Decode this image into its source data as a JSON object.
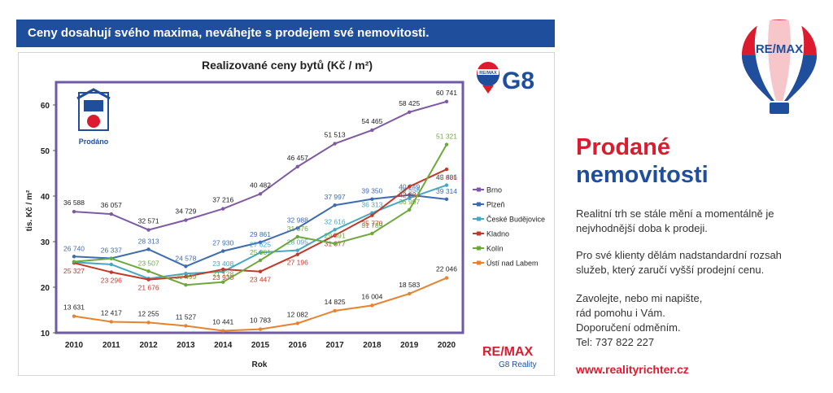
{
  "banner": {
    "text": "Ceny dosahují svého maxima, neváhejte s prodejem své nemovitosti."
  },
  "logos": {
    "g8_text": "G8",
    "remax_mini": "RE/MAX",
    "remax_bottom": "RE/MAX",
    "remax_bottom_sub": "G8 Reality",
    "remax_balloon": "RE/MAX",
    "prodano_badge": "Prodáno"
  },
  "right": {
    "title_line1": "Prodané",
    "title_line2": "nemovitosti",
    "para1": "Realitní trh se stále mění a momentálně je nejvhodnější doba k prodeji.",
    "para2": "Pro své klienty dělám nadstandardní rozsah služeb, který zaručí vyšší prodejní cenu.",
    "para3_line1": "Zavolejte, nebo mi napište,",
    "para3_line2": "rád pomohu i Vám.",
    "para3_line3": "Doporučení odměním.",
    "para3_line4": "Tel:  737 822 227",
    "url": "www.realityrichter.cz"
  },
  "colors": {
    "brand_blue": "#1f4e9c",
    "brand_red": "#dc1c2e",
    "plot_border": "#6e5aa6"
  },
  "chart_data": {
    "type": "line",
    "title": "Realizované ceny bytů (Kč / m²)",
    "xlabel": "Rok",
    "ylabel": "tis. Kč / m²",
    "ylim": [
      10,
      65
    ],
    "yticks": [
      10,
      20,
      30,
      40,
      50,
      60
    ],
    "grid": false,
    "legend_position": "right",
    "x": [
      "2010",
      "2011",
      "2012",
      "2013",
      "2014",
      "2015",
      "2016",
      "2017",
      "2018",
      "2019",
      "2020"
    ],
    "series": [
      {
        "name": "Brno",
        "color": "#7d5aa3",
        "values": [
          36.588,
          36.057,
          32.571,
          34.729,
          37.216,
          40.482,
          46.457,
          51.513,
          54.465,
          58.425,
          60.741
        ],
        "labels": [
          "36 588",
          "36 057",
          "32 571",
          "34 729",
          "37 216",
          "40 482",
          "46 457",
          "51 513",
          "54 465",
          "58 425",
          "60 741"
        ]
      },
      {
        "name": "Plzeň",
        "color": "#3e6bb0",
        "values": [
          26.74,
          26.337,
          28.313,
          24.578,
          27.93,
          29.861,
          32.988,
          37.997,
          39.35,
          40.249,
          39.314
        ],
        "labels": [
          "26 740",
          "26 337",
          "28 313",
          "24 578",
          "27 930",
          "29 861",
          "32 988",
          "37 997",
          "39 350",
          "40 249",
          "39 314"
        ]
      },
      {
        "name": "České Budějovice",
        "color": "#46a6c4",
        "values": [
          25.5,
          25.0,
          21.9,
          23.0,
          23.408,
          27.625,
          28.095,
          32.616,
          36.313,
          39.558,
          42.406
        ],
        "labels": [
          "",
          "",
          "",
          "",
          "23 408",
          "27 625",
          "28 095",
          "32 616",
          "36 313",
          "39 558",
          "42 406"
        ]
      },
      {
        "name": "Kladno",
        "color": "#c0392b",
        "values": [
          25.327,
          23.296,
          21.676,
          22.3,
          23.93,
          23.447,
          27.196,
          31.377,
          35.77,
          42.084,
          45.881
        ],
        "labels": [
          "25 327",
          "23 296",
          "21 676",
          "",
          "23 930",
          "23 447",
          "27 196",
          "31 377",
          "35 770",
          "42 084",
          "45 881"
        ]
      },
      {
        "name": "Kolín",
        "color": "#6ea83c",
        "values": [
          25.6,
          26.3,
          23.507,
          20.499,
          21.128,
          25.901,
          31.076,
          29.591,
          31.789,
          36.997,
          51.321
        ],
        "labels": [
          "",
          "",
          "23 507",
          "20 499",
          "21 128",
          "25 901",
          "31 076",
          "29 591",
          "31 789",
          "36 997",
          "51 321"
        ]
      },
      {
        "name": "Ústí nad Labem",
        "color": "#e8822c",
        "values": [
          13.631,
          12.417,
          12.255,
          11.527,
          10.441,
          10.783,
          12.082,
          14.825,
          16.004,
          18.583,
          22.046
        ],
        "labels": [
          "13 631",
          "12 417",
          "12 255",
          "11 527",
          "10 441",
          "10 783",
          "12 082",
          "14 825",
          "16 004",
          "18 583",
          "22 046"
        ]
      }
    ]
  }
}
